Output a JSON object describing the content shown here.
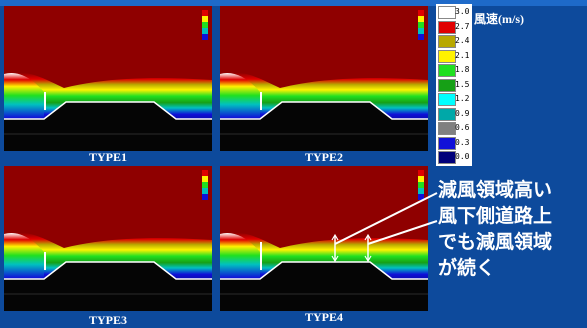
{
  "header_strip_color": "#1e6ac9",
  "background_color": "#0d4a9c",
  "panels": [
    {
      "id": "type1",
      "label": "TYPE1",
      "barrier": "short-fence"
    },
    {
      "id": "type2",
      "label": "TYPE2",
      "barrier": "short-fence"
    },
    {
      "id": "type3",
      "label": "TYPE3",
      "barrier": "short-fence"
    },
    {
      "id": "type4",
      "label": "TYPE4",
      "barrier": "tall-fence"
    }
  ],
  "legend": {
    "title": "風速(m/s)",
    "items": [
      {
        "value": "3.0",
        "color": "#ffffff"
      },
      {
        "value": "2.7",
        "color": "#e00000"
      },
      {
        "value": "2.4",
        "color": "#b8a800"
      },
      {
        "value": "2.1",
        "color": "#fff200"
      },
      {
        "value": "1.8",
        "color": "#20e020"
      },
      {
        "value": "1.5",
        "color": "#16a016"
      },
      {
        "value": "1.2",
        "color": "#00ffff"
      },
      {
        "value": "0.9",
        "color": "#00a8a8"
      },
      {
        "value": "0.6",
        "color": "#808080"
      },
      {
        "value": "0.3",
        "color": "#1010d8"
      },
      {
        "value": "0.0",
        "color": "#00007a"
      }
    ]
  },
  "annotations": {
    "line1": "減風領域高い",
    "line2": "風下側道路上",
    "line3": "でも減風領域",
    "line4": "が続く"
  }
}
